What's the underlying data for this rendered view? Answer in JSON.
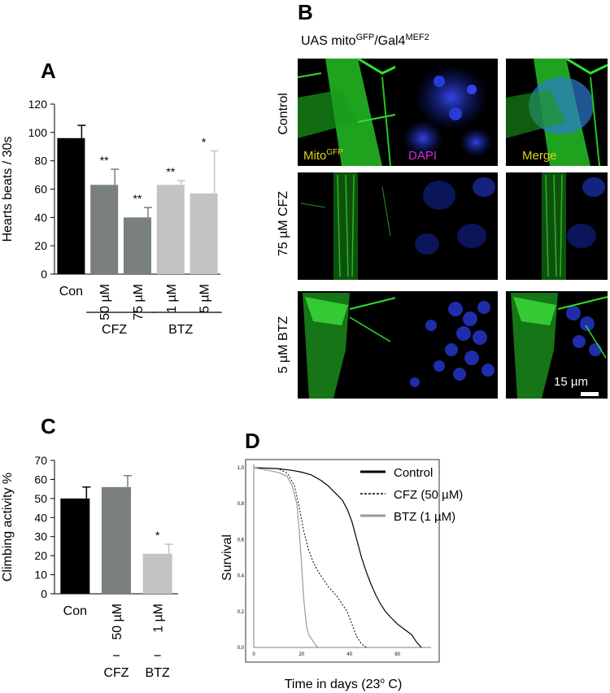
{
  "panel_labels": {
    "A": "A",
    "B": "B",
    "C": "C",
    "D": "D"
  },
  "colors": {
    "black": "#000000",
    "dark_grey": "#7a7f7f",
    "light_grey": "#c3c3c3",
    "gfp": "#22c822",
    "dapi": "#1c2fd6",
    "label_yellow": "#e0d21e",
    "label_magenta": "#d22bd2"
  },
  "microscopy": {
    "title_main": "UAS mito",
    "title_sup1": "GFP",
    "title_mid": "/Gal4",
    "title_sup2": "MEF2",
    "rows": [
      "Control",
      "75 µM CFZ",
      "5 µM BTZ"
    ],
    "channel_labels": {
      "mito": "Mito",
      "mito_sup": "GFP",
      "dapi": "DAPI",
      "merge": "Merge"
    },
    "scale_bar": "15 µm"
  },
  "chart_data": [
    {
      "id": "A",
      "type": "bar",
      "ylabel": "Hearts beats / 30s",
      "xlabel": "",
      "ylim": [
        0,
        120
      ],
      "yticks": [
        0,
        20,
        40,
        60,
        80,
        100,
        120
      ],
      "categories": [
        "Con",
        "50 µM",
        "75 µM",
        "1 µM",
        "5 µM"
      ],
      "values": [
        96,
        63,
        40,
        63,
        57
      ],
      "errors": [
        9,
        11,
        7,
        3,
        30
      ],
      "colors": [
        "#000000",
        "#7a7f7f",
        "#7a7f7f",
        "#c3c3c3",
        "#c3c3c3"
      ],
      "significance": [
        "",
        "**",
        "**",
        "**",
        "*"
      ],
      "groups": [
        {
          "label": "CFZ",
          "members": [
            1,
            2
          ]
        },
        {
          "label": "BTZ",
          "members": [
            3,
            4
          ]
        }
      ]
    },
    {
      "id": "C",
      "type": "bar",
      "ylabel": "Climbing activity %",
      "xlabel": "",
      "ylim": [
        0,
        70
      ],
      "yticks": [
        0,
        10,
        20,
        30,
        40,
        50,
        60,
        70
      ],
      "categories": [
        "Con",
        "50 µM",
        "1 µM"
      ],
      "values": [
        50,
        56,
        21
      ],
      "errors": [
        6,
        6,
        5
      ],
      "colors": [
        "#000000",
        "#7a7f7f",
        "#c3c3c3"
      ],
      "significance": [
        "",
        "",
        "*"
      ],
      "groups": [
        {
          "label": "CFZ",
          "members": [
            1
          ]
        },
        {
          "label": "BTZ",
          "members": [
            2
          ]
        }
      ]
    },
    {
      "id": "D",
      "type": "line",
      "title": "",
      "xlabel_main": "Time in days (23",
      "xlabel_sup": "o",
      "xlabel_end": " C)",
      "ylabel": "Survival",
      "xlim": [
        0,
        72
      ],
      "ylim": [
        0,
        1.0
      ],
      "xticks": [
        0,
        20,
        40,
        60
      ],
      "yticks": [
        0.0,
        0.2,
        0.4,
        0.6,
        0.8,
        1.0
      ],
      "ytick_labels": [
        "0,0",
        "0,2",
        "0,4",
        "0,6",
        "0,8",
        "1,0"
      ],
      "series": [
        {
          "name": "Control",
          "style": "solid",
          "color": "#000000",
          "x": [
            0,
            10,
            16,
            20,
            24,
            28,
            31,
            34,
            37,
            39,
            41,
            43,
            45,
            47,
            49,
            51,
            53,
            55,
            57,
            60,
            63,
            66,
            68,
            70
          ],
          "y": [
            1.0,
            0.995,
            0.985,
            0.975,
            0.96,
            0.93,
            0.9,
            0.86,
            0.82,
            0.77,
            0.7,
            0.6,
            0.5,
            0.42,
            0.35,
            0.29,
            0.24,
            0.2,
            0.17,
            0.13,
            0.1,
            0.07,
            0.03,
            0.0
          ]
        },
        {
          "name": "CFZ (50 µM)",
          "style": "dashed",
          "color": "#000000",
          "x": [
            0,
            10,
            14,
            17,
            19,
            21,
            23,
            25,
            27,
            29,
            31,
            33,
            35,
            37,
            39,
            41,
            43,
            45,
            47
          ],
          "y": [
            1.0,
            0.995,
            0.97,
            0.9,
            0.78,
            0.64,
            0.54,
            0.47,
            0.42,
            0.38,
            0.34,
            0.31,
            0.28,
            0.24,
            0.2,
            0.13,
            0.06,
            0.02,
            0.0
          ]
        },
        {
          "name": "BTZ (1 µM)",
          "style": "solid",
          "color": "#9a9a9a",
          "x": [
            0,
            8,
            11,
            14,
            16,
            18,
            19,
            20,
            21,
            22,
            23,
            24,
            25,
            26,
            27
          ],
          "y": [
            1.0,
            0.98,
            0.97,
            0.95,
            0.9,
            0.8,
            0.65,
            0.45,
            0.25,
            0.12,
            0.07,
            0.05,
            0.03,
            0.01,
            0.0
          ]
        }
      ],
      "legend_position": "top-right"
    }
  ]
}
